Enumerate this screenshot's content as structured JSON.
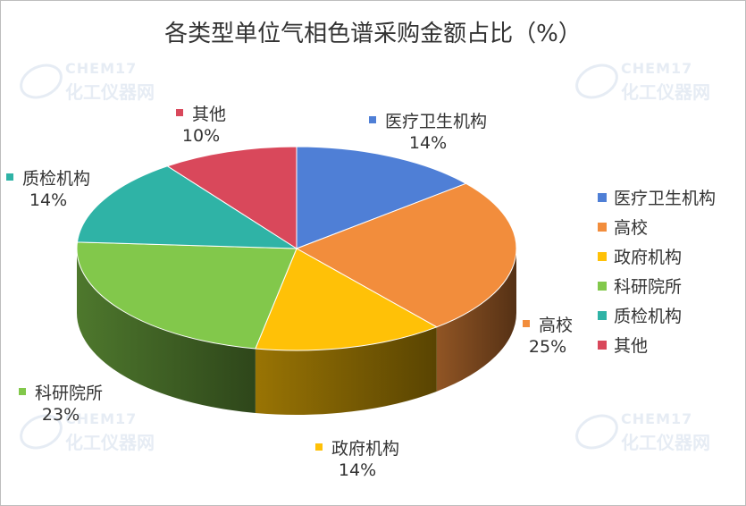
{
  "chart_data": {
    "type": "pie",
    "title": "各类型单位气相色谱采购金额占比（%）",
    "slices": [
      {
        "label": "医疗卫生机构",
        "value": 14,
        "value_label": "14%",
        "color": "#4f7fd6"
      },
      {
        "label": "高校",
        "value": 25,
        "value_label": "25%",
        "color": "#f28d3c"
      },
      {
        "label": "政府机构",
        "value": 14,
        "value_label": "14%",
        "color": "#ffc107"
      },
      {
        "label": "科研院所",
        "value": 23,
        "value_label": "23%",
        "color": "#82c84b"
      },
      {
        "label": "质检机构",
        "value": 14,
        "value_label": "14%",
        "color": "#2fb3a6"
      },
      {
        "label": "其他",
        "value": 10,
        "value_label": "10%",
        "color": "#d9485b"
      }
    ],
    "legend_position": "right",
    "style": "3d-pie"
  },
  "watermark": {
    "brand": "CHEM17",
    "name": "化工仪器网"
  }
}
